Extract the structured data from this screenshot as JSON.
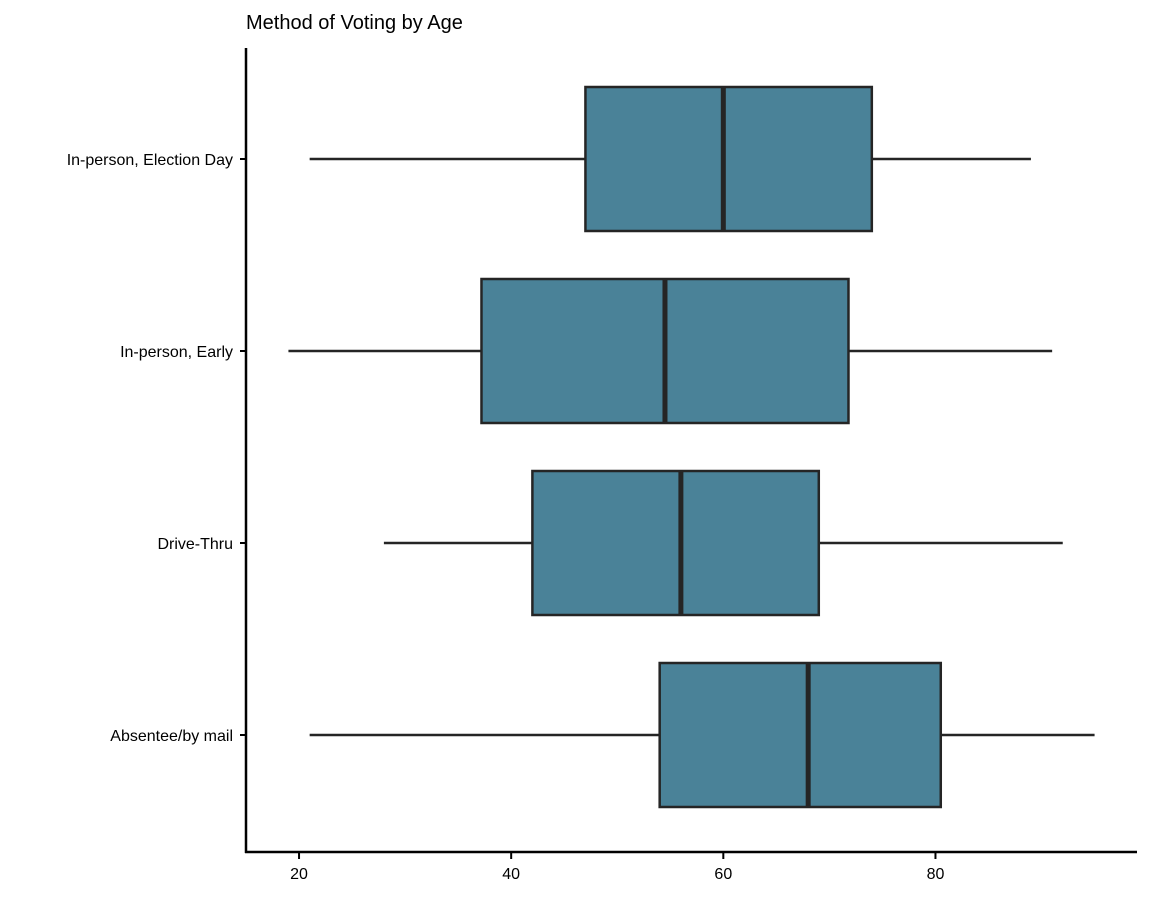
{
  "chart_data": {
    "type": "boxplot",
    "orientation": "horizontal",
    "title": "Method of Voting by Age",
    "xlabel": "",
    "ylabel": "",
    "xlim": [
      15,
      99
    ],
    "x_ticks": [
      20,
      40,
      60,
      80
    ],
    "x_tick_labels": [
      "20",
      "40",
      "60",
      "80"
    ],
    "grid": false,
    "legend": "none",
    "fill_color": "#4A8298",
    "stroke_color": "#252525",
    "categories": [
      "In-person, Election Day",
      "In-person, Early",
      "Drive-Thru",
      "Absentee/by mail"
    ],
    "boxes": [
      {
        "category": "In-person, Election Day",
        "whisker_low": 21,
        "q1": 47,
        "median": 60,
        "q3": 74,
        "whisker_high": 89
      },
      {
        "category": "In-person, Early",
        "whisker_low": 19,
        "q1": 37.2,
        "median": 54.5,
        "q3": 71.8,
        "whisker_high": 91
      },
      {
        "category": "Drive-Thru",
        "whisker_low": 28,
        "q1": 42,
        "median": 56,
        "q3": 69,
        "whisker_high": 92
      },
      {
        "category": "Absentee/by mail",
        "whisker_low": 21,
        "q1": 54,
        "median": 68,
        "q3": 80.5,
        "whisker_high": 95
      }
    ]
  }
}
